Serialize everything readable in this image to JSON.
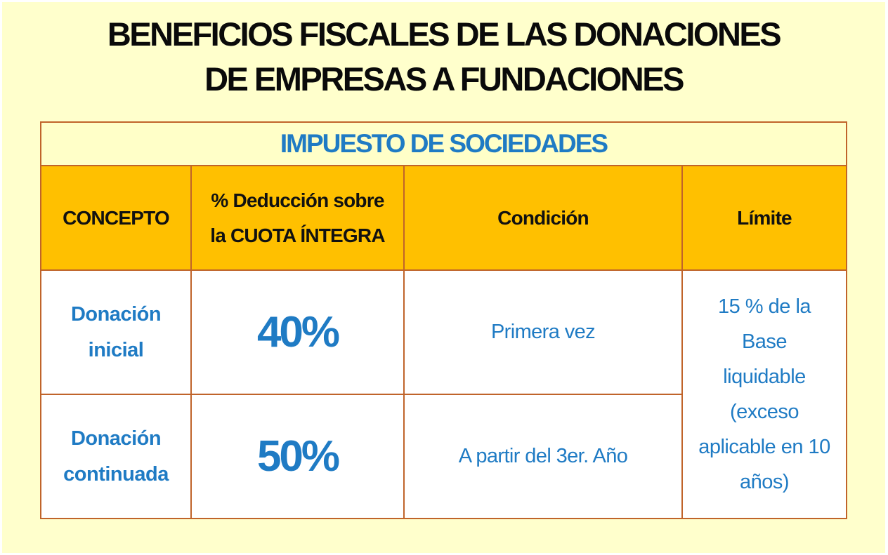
{
  "title": {
    "line1": "BENEFICIOS FISCALES DE LAS DONACIONES",
    "line2": "DE EMPRESAS A FUNDACIONES"
  },
  "section": "IMPUESTO DE SOCIEDADES",
  "headers": {
    "concepto": "CONCEPTO",
    "deduccion_line1": "% Deducción sobre",
    "deduccion_line2": "la CUOTA ÍNTEGRA",
    "condicion": "Condición",
    "limite": "Límite"
  },
  "rows": [
    {
      "concepto_line1": "Donación",
      "concepto_line2": "inicial",
      "deduccion": "40%",
      "condicion": "Primera vez"
    },
    {
      "concepto_line1": "Donación",
      "concepto_line2": "continuada",
      "deduccion": "50%",
      "condicion": "A partir del 3er. Año"
    }
  ],
  "limite": {
    "line1": "15 % de la",
    "line2": "Base",
    "line3": "liquidable",
    "line4": "(exceso",
    "line5": "aplicable en 10",
    "line6": "años)"
  },
  "colors": {
    "background": "#ffffcc",
    "header_fill": "#ffc000",
    "accent_blue": "#1f7bc4",
    "border": "#c0642a"
  }
}
